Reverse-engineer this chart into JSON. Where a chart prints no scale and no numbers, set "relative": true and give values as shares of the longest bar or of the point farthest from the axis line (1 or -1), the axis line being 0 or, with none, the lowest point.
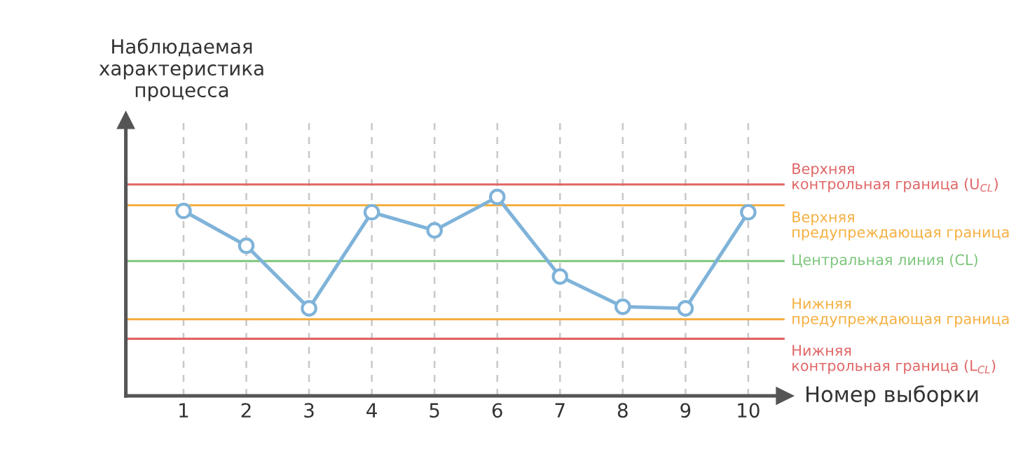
{
  "chart_data": {
    "type": "line",
    "relative": true,
    "xlabel": "Номер выборки",
    "ylabel": "Наблюдаемая\nхарактеристика\nпроцесса",
    "categories": [
      "1",
      "2",
      "3",
      "4",
      "5",
      "6",
      "7",
      "8",
      "9",
      "10"
    ],
    "series": [
      {
        "color": "#7fb3d9",
        "values": [
          0.93,
          0.755,
          0.44,
          0.923,
          0.832,
          1,
          0.6,
          0.448,
          0.44,
          0.923
        ]
      }
    ],
    "marker": "circle",
    "line_style": "solid",
    "grid": "x",
    "tick_labels": "x",
    "ref_lines": [
      {
        "axis": "y",
        "value": 1.063,
        "label": "Верхняя\nконтрольная граница (U$_{CL}$)",
        "color": "#e06666"
      },
      {
        "axis": "y",
        "value": 0.958,
        "label": "Верхняя\nпредупреждающая граница",
        "color": "#f5b041"
      },
      {
        "axis": "y",
        "value": 0.678,
        "label": "Центральная линия (CL)",
        "color": "#7dc67d"
      },
      {
        "axis": "y",
        "value": 0.385,
        "label": "Нижняя\nпредупреждающая граница",
        "color": "#f5b041"
      },
      {
        "axis": "y",
        "value": 0.287,
        "label": "Нижняя\nконтрольная граница (L$_{CL}$)",
        "color": "#e06666"
      }
    ]
  }
}
